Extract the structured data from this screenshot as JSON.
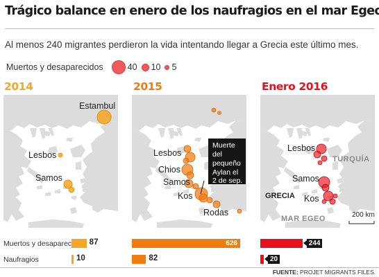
{
  "title": "Trágico balance en enero de los naufragios en el mar Egeo",
  "subtitle": "Al menos 240 migrantes perdieron la vida intentando llegar a Grecia este último mes.",
  "legend": {
    "label": "Muertos y desaparecidos",
    "items": [
      {
        "label": "40",
        "value": 40
      },
      {
        "label": "10",
        "value": 10
      },
      {
        "label": "5",
        "value": 5
      }
    ]
  },
  "colors": {
    "y2014": "#f5a623",
    "y2015": "#f07c10",
    "y2016": "#e8101a",
    "sea": "#ffffff",
    "land": "#dcdcdc"
  },
  "panels": [
    {
      "year": "2014",
      "labels": {
        "estambul": "Estambul",
        "lesbos": "Lesbos",
        "samos": "Samos"
      }
    },
    {
      "year": "2015",
      "labels": {
        "lesbos": "Lesbos",
        "chios": "Chios",
        "samos": "Samos",
        "kos": "Kos",
        "rodas": "Rodas"
      },
      "callout": [
        "Muerte",
        "del",
        "pequeño",
        "Aylan el",
        "2 de sep."
      ]
    },
    {
      "year": "Enero 2016",
      "labels": {
        "lesbos": "Lesbos",
        "samos": "Samos",
        "kos": "Kos",
        "turquia": "TURQUÍA",
        "grecia": "GRECIA",
        "mar_egeo": "MAR EGEO"
      },
      "scale": "200 km"
    }
  ],
  "stats": {
    "muertos_label": "Muertos y desaparecidos",
    "naufragios_label": "Naufragios"
  },
  "chart_data": {
    "type": "bar",
    "categories": [
      "2014",
      "2015",
      "Enero 2016"
    ],
    "series": [
      {
        "name": "Muertos y desaparecidos",
        "values": [
          87,
          626,
          244
        ]
      },
      {
        "name": "Naufragios",
        "values": [
          10,
          82,
          20
        ]
      }
    ]
  },
  "source": {
    "label": "FUENTE:",
    "text": "PROJET MIGRANTS FILES."
  }
}
